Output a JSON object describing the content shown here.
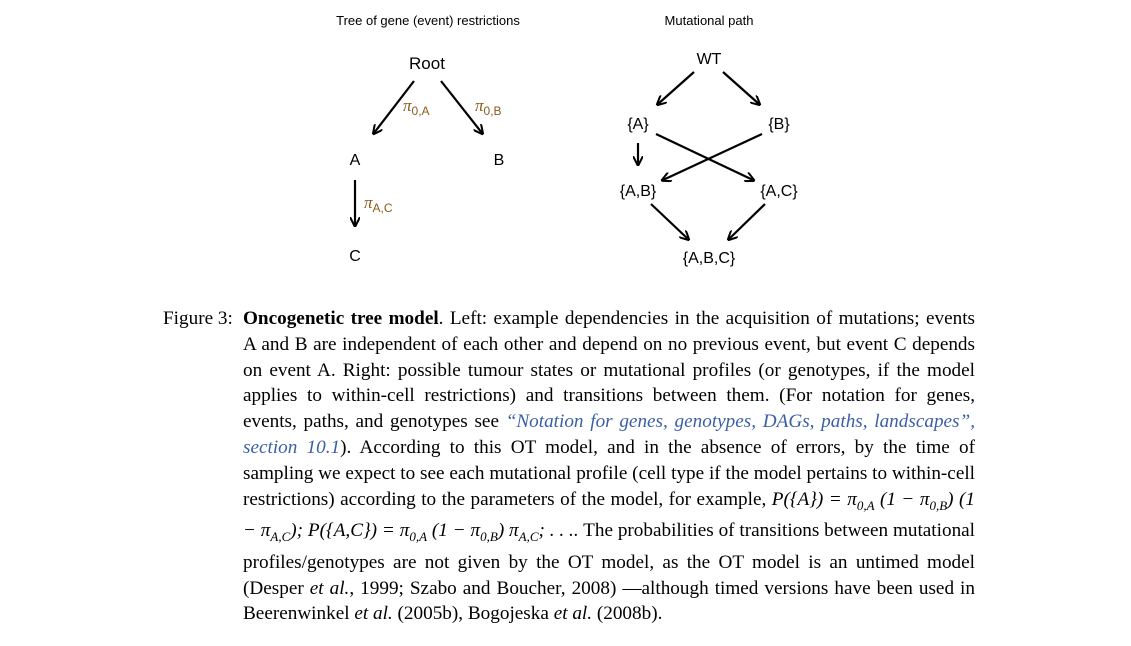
{
  "left_diagram": {
    "title": "Tree of gene (event) restrictions",
    "nodes": {
      "root": "Root",
      "a": "A",
      "b": "B",
      "c": "C"
    },
    "edge_labels": {
      "root_a_sub": "0,A",
      "root_b_sub": "0,B",
      "a_c_sub": "A,C"
    },
    "pi_symbol": "π"
  },
  "right_diagram": {
    "title": "Mutational path",
    "nodes": {
      "wt": "WT",
      "a": "{A}",
      "b": "{B}",
      "ab": "{A,B}",
      "ac": "{A,C}",
      "abc": "{A,B,C}"
    }
  },
  "caption": {
    "label": "Figure 3:",
    "title": "Oncogenetic tree model",
    "text_1": ". Left: example dependencies in the acquisition of mutations; events A and B are independent of each other and depend on no previous event, but event C depends on event A. Right: possible tumour states or mutational profiles (or genotypes, if the model applies to within-cell restrictions) and transitions between them. (For notation for genes, events, paths, and genotypes see ",
    "link": "“Notation for genes, genotypes, DAGs, paths, landscapes”, section 10.1",
    "text_2": "). According to this OT model, and in the absence of errors, by the time of sampling we expect to see each mutational profile (cell type if the model pertains to within-cell restrictions) according to the parameters of the model, for example, ",
    "formula": "P({A}) = π0,A (1 − π0,B) (1 − πA,C); P({A,C}) = π0,A (1 − π0,B) πA,C; . . ..",
    "text_3": " The probabilities of transitions between mutational profiles/genotypes are not given by the OT model, as the OT model is an untimed model (Desper ",
    "etal": "et al.",
    "text_4": ", 1999; Szabo and Boucher, 2008) —although timed versions have been used in Beerenwinkel ",
    "text_5": " (2005b), Bogojeska ",
    "text_6": " (2008b)."
  },
  "colors": {
    "edge_label": "#8b5a1e",
    "link": "#3a5fa6",
    "text": "#000000"
  }
}
